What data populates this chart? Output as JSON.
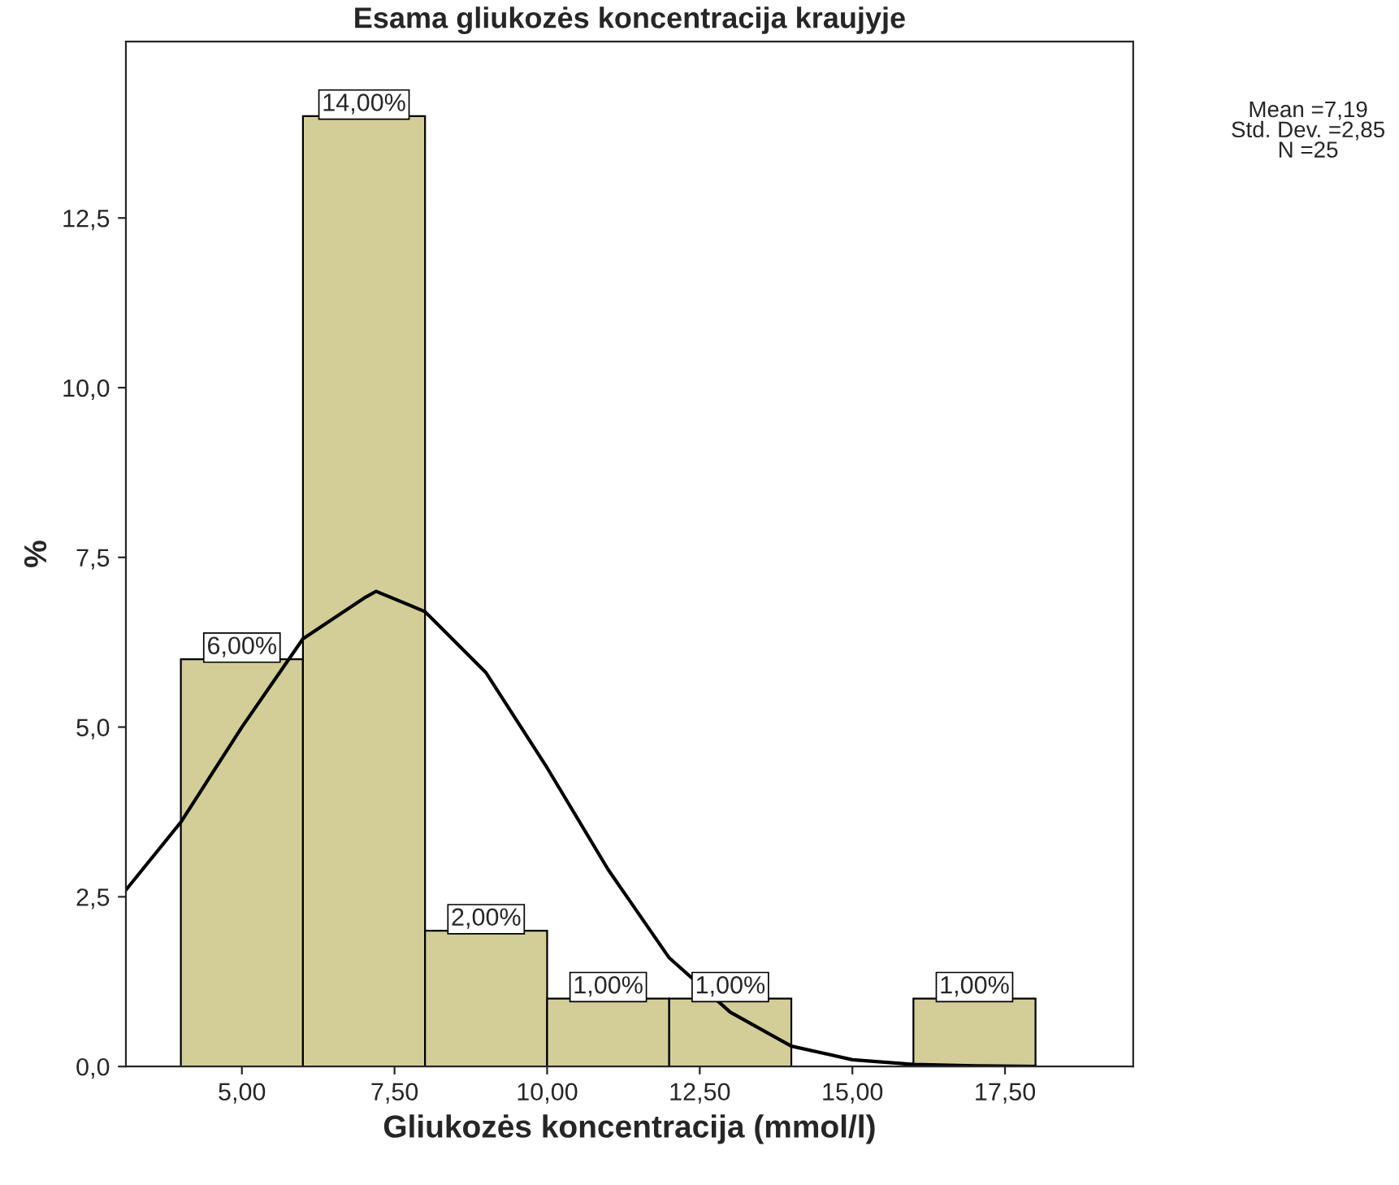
{
  "chart_data": {
    "type": "histogram",
    "title": "Esama gliukozės koncentracija kraujyje",
    "xlabel": "Gliukozės koncentracija (mmol/l)",
    "ylabel": "%",
    "bins": [
      4,
      6,
      8,
      10,
      12,
      14,
      16,
      18
    ],
    "values": [
      6,
      14,
      2,
      1,
      1,
      0,
      1
    ],
    "color": "#d3ce97",
    "value_labels": [
      "6,00%",
      "14,00%",
      "2,00%",
      "1,00%",
      "1,00%",
      null,
      "1,00%"
    ],
    "series": [
      {
        "type": "line",
        "color": "#000000",
        "x": [
          3.1,
          4,
          5,
          6,
          7,
          7.2,
          8,
          9,
          10,
          11,
          12,
          13,
          14,
          15,
          16,
          17,
          18
        ],
        "values": [
          2.6,
          3.6,
          5.0,
          6.3,
          6.9,
          7.0,
          6.7,
          5.8,
          4.4,
          2.9,
          1.6,
          0.8,
          0.3,
          0.1,
          0.03,
          0.01,
          0.0
        ]
      }
    ],
    "xlim": [
      3.1,
      19.6
    ],
    "ylim": [
      0,
      15.1
    ],
    "xticks": [
      {
        "value": 5,
        "label": "5,00"
      },
      {
        "value": 7.5,
        "label": "7,50"
      },
      {
        "value": 10,
        "label": "10,00"
      },
      {
        "value": 12.5,
        "label": "12,50"
      },
      {
        "value": 15,
        "label": "15,00"
      },
      {
        "value": 17.5,
        "label": "17,50"
      }
    ],
    "yticks": [
      {
        "value": 0,
        "label": "0,0"
      },
      {
        "value": 2.5,
        "label": "2,5"
      },
      {
        "value": 5,
        "label": "5,0"
      },
      {
        "value": 7.5,
        "label": "7,5"
      },
      {
        "value": 10,
        "label": "10,0"
      },
      {
        "value": 12.5,
        "label": "12,5"
      }
    ],
    "annotations": [
      "Mean =7,19",
      "Std. Dev. =2,85",
      "N =25"
    ],
    "grid": false,
    "legend": false
  }
}
